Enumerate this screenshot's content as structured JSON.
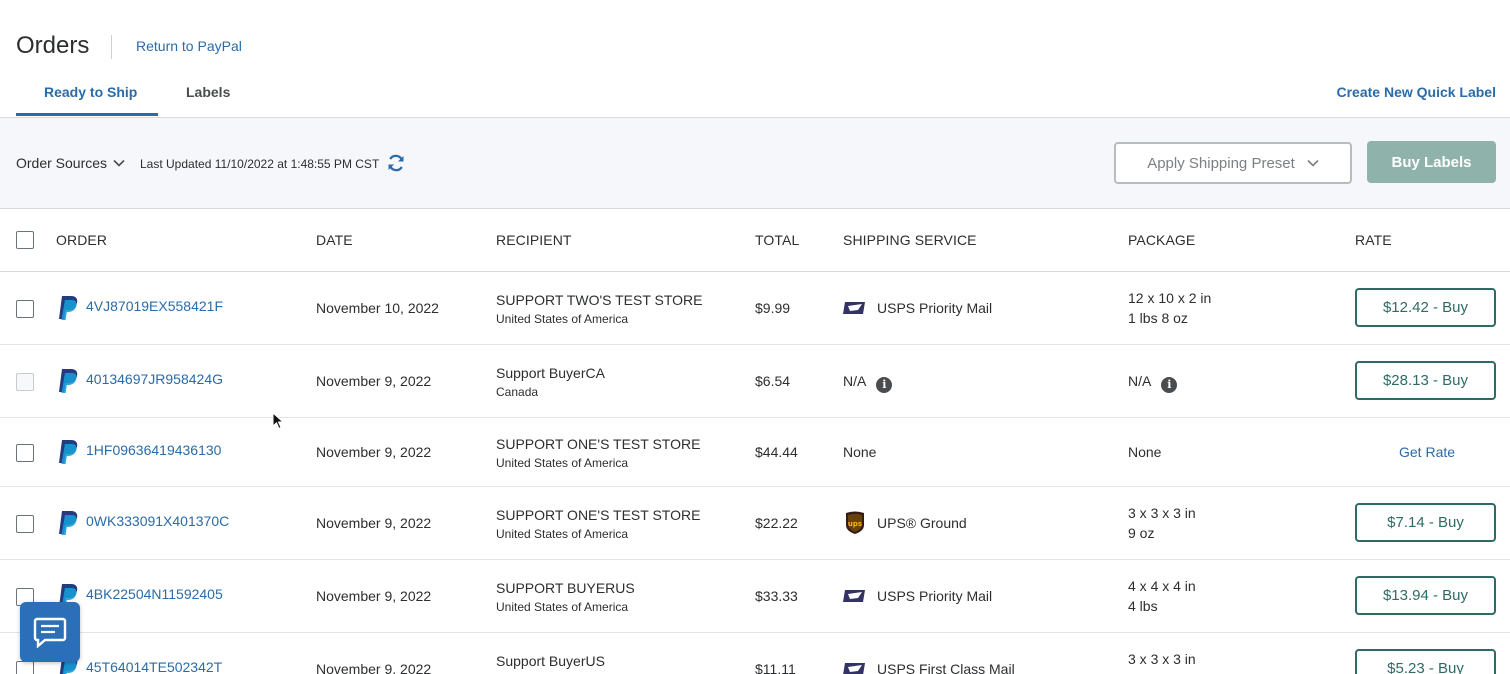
{
  "header": {
    "title": "Orders",
    "return_link": "Return to PayPal",
    "tabs": [
      {
        "label": "Ready to Ship",
        "active": true
      },
      {
        "label": "Labels",
        "active": false
      }
    ],
    "quick_label": "Create New Quick Label"
  },
  "toolbar": {
    "order_sources": "Order Sources",
    "last_updated": "Last Updated 11/10/2022 at 1:48:55 PM CST",
    "apply_preset": "Apply Shipping Preset",
    "buy_labels": "Buy Labels"
  },
  "table": {
    "columns": [
      "ORDER",
      "DATE",
      "RECIPIENT",
      "TOTAL",
      "SHIPPING SERVICE",
      "PACKAGE",
      "RATE"
    ],
    "rows": [
      {
        "order": "4VJ87019EX558421F",
        "date": "November 10, 2022",
        "recipient": "SUPPORT TWO'S TEST STORE",
        "country": "United States of America",
        "total": "$9.99",
        "service": "USPS Priority Mail",
        "carrier": "usps",
        "package_line1": "12 x 10 x 2 in",
        "package_line2": "1 lbs 8 oz",
        "rate": "$12.42 - Buy"
      },
      {
        "order": "40134697JR958424G",
        "date": "November 9, 2022",
        "recipient": "Support BuyerCA",
        "country": "Canada",
        "total": "$6.54",
        "service": "N/A",
        "carrier": "none",
        "package_line1": "N/A",
        "package_line2": "",
        "rate": "$28.13 - Buy"
      },
      {
        "order": "1HF09636419436130",
        "date": "November 9, 2022",
        "recipient": "SUPPORT ONE'S TEST STORE",
        "country": "United States of America",
        "total": "$44.44",
        "service": "None",
        "carrier": "none",
        "package_line1": "None",
        "package_line2": "",
        "rate": "Get Rate"
      },
      {
        "order": "0WK333091X401370C",
        "date": "November 9, 2022",
        "recipient": "SUPPORT ONE'S TEST STORE",
        "country": "United States of America",
        "total": "$22.22",
        "service": "UPS® Ground",
        "carrier": "ups",
        "package_line1": "3 x 3 x 3 in",
        "package_line2": "9 oz",
        "rate": "$7.14 - Buy"
      },
      {
        "order": "4BK22504N11592405",
        "date": "November 9, 2022",
        "recipient": "SUPPORT BUYERUS",
        "country": "United States of America",
        "total": "$33.33",
        "service": "USPS Priority Mail",
        "carrier": "usps",
        "package_line1": "4 x 4 x 4 in",
        "package_line2": "4 lbs",
        "rate": "$13.94 - Buy"
      },
      {
        "order": "45T64014TE502342T",
        "date": "November 9, 2022",
        "recipient": "Support BuyerUS",
        "country": "",
        "total": "$11.11",
        "service": "USPS First Class Mail",
        "carrier": "usps",
        "package_line1": "3 x 3 x 3 in",
        "package_line2": "",
        "rate": "$5.23 - Buy"
      }
    ]
  },
  "icons": {
    "refresh": "refresh-icon",
    "chat": "chat-icon",
    "paypal": "paypal-icon",
    "info": "info-icon"
  },
  "colors": {
    "link": "#2a6ba8",
    "rate_button": "#2e6b66",
    "buy_labels_bg": "#8fb3ab",
    "chat_bg": "#2a6fb8"
  }
}
